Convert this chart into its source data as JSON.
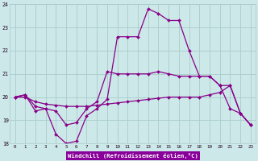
{
  "x": [
    0,
    1,
    2,
    3,
    4,
    5,
    6,
    7,
    8,
    9,
    10,
    11,
    12,
    13,
    14,
    15,
    16,
    17,
    18,
    19,
    20,
    21,
    22,
    23
  ],
  "temp": [
    20.0,
    20.1,
    19.4,
    19.5,
    18.4,
    18.0,
    18.1,
    19.2,
    19.5,
    19.9,
    22.6,
    22.6,
    22.6,
    23.8,
    23.6,
    23.3,
    23.3,
    22.0,
    20.9,
    20.9,
    20.5,
    19.5,
    19.3,
    18.8
  ],
  "line2": [
    20.0,
    20.1,
    19.6,
    19.5,
    19.4,
    18.8,
    18.9,
    19.5,
    19.8,
    21.1,
    21.0,
    21.0,
    21.0,
    21.0,
    21.1,
    21.0,
    20.9,
    20.9,
    20.9,
    20.9,
    20.5,
    20.5,
    19.3,
    18.8
  ],
  "line3": [
    20.0,
    20.0,
    19.8,
    19.7,
    19.65,
    19.6,
    19.6,
    19.6,
    19.65,
    19.7,
    19.75,
    19.8,
    19.85,
    19.9,
    19.95,
    20.0,
    20.0,
    20.0,
    20.0,
    20.1,
    20.2,
    20.5,
    19.3,
    18.8
  ],
  "xlabel": "Windchill (Refroidissement éolien,°C)",
  "ylim": [
    18,
    24
  ],
  "xlim": [
    -0.5,
    23.5
  ],
  "yticks": [
    18,
    19,
    20,
    21,
    22,
    23,
    24
  ],
  "bg_color": "#cce8e8",
  "line_color": "#880088",
  "grid_color": "#aacccc",
  "xlabel_bg": "#880099"
}
